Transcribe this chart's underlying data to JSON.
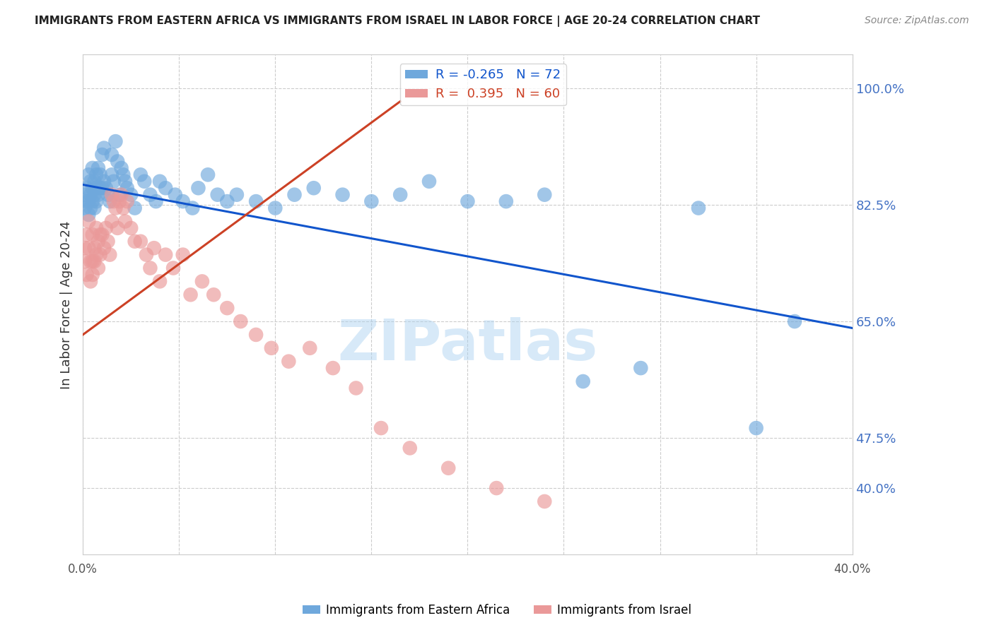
{
  "title": "IMMIGRANTS FROM EASTERN AFRICA VS IMMIGRANTS FROM ISRAEL IN LABOR FORCE | AGE 20-24 CORRELATION CHART",
  "source": "Source: ZipAtlas.com",
  "ylabel": "In Labor Force | Age 20-24",
  "xlim": [
    0.0,
    0.4
  ],
  "ylim": [
    0.3,
    1.05
  ],
  "xticks": [
    0.0,
    0.05,
    0.1,
    0.15,
    0.2,
    0.25,
    0.3,
    0.35,
    0.4
  ],
  "xticklabels": [
    "0.0%",
    "",
    "",
    "",
    "",
    "",
    "",
    "",
    "40.0%"
  ],
  "yticks_right": [
    0.4,
    0.475,
    0.65,
    0.825,
    1.0
  ],
  "yticklabels_right": [
    "40.0%",
    "47.5%",
    "65.0%",
    "82.5%",
    "100.0%"
  ],
  "blue_R": -0.265,
  "blue_N": 72,
  "pink_R": 0.395,
  "pink_N": 60,
  "blue_color": "#6fa8dc",
  "pink_color": "#ea9999",
  "blue_line_color": "#1155cc",
  "pink_line_color": "#cc4125",
  "watermark": "ZIPatlas",
  "watermark_color": "#a8d0f0",
  "legend_label_blue": "Immigrants from Eastern Africa",
  "legend_label_pink": "Immigrants from Israel",
  "blue_scatter_x": [
    0.001,
    0.001,
    0.002,
    0.002,
    0.003,
    0.003,
    0.003,
    0.004,
    0.004,
    0.004,
    0.005,
    0.005,
    0.005,
    0.006,
    0.006,
    0.006,
    0.007,
    0.007,
    0.007,
    0.008,
    0.008,
    0.009,
    0.009,
    0.01,
    0.01,
    0.011,
    0.011,
    0.012,
    0.013,
    0.014,
    0.015,
    0.015,
    0.016,
    0.017,
    0.018,
    0.019,
    0.02,
    0.021,
    0.022,
    0.023,
    0.025,
    0.027,
    0.03,
    0.032,
    0.035,
    0.038,
    0.04,
    0.043,
    0.048,
    0.052,
    0.057,
    0.06,
    0.065,
    0.07,
    0.075,
    0.08,
    0.09,
    0.1,
    0.11,
    0.12,
    0.135,
    0.15,
    0.165,
    0.18,
    0.2,
    0.22,
    0.24,
    0.26,
    0.29,
    0.32,
    0.35,
    0.37
  ],
  "blue_scatter_y": [
    0.84,
    0.82,
    0.85,
    0.83,
    0.87,
    0.83,
    0.81,
    0.86,
    0.84,
    0.82,
    0.88,
    0.85,
    0.83,
    0.86,
    0.84,
    0.82,
    0.87,
    0.85,
    0.83,
    0.88,
    0.84,
    0.87,
    0.85,
    0.9,
    0.85,
    0.91,
    0.86,
    0.85,
    0.84,
    0.83,
    0.9,
    0.87,
    0.86,
    0.92,
    0.89,
    0.84,
    0.88,
    0.87,
    0.86,
    0.85,
    0.84,
    0.82,
    0.87,
    0.86,
    0.84,
    0.83,
    0.86,
    0.85,
    0.84,
    0.83,
    0.82,
    0.85,
    0.87,
    0.84,
    0.83,
    0.84,
    0.83,
    0.82,
    0.84,
    0.85,
    0.84,
    0.83,
    0.84,
    0.86,
    0.83,
    0.83,
    0.84,
    0.56,
    0.58,
    0.82,
    0.49,
    0.65
  ],
  "pink_scatter_x": [
    0.001,
    0.001,
    0.002,
    0.002,
    0.003,
    0.003,
    0.004,
    0.004,
    0.005,
    0.005,
    0.005,
    0.006,
    0.006,
    0.007,
    0.007,
    0.008,
    0.008,
    0.009,
    0.009,
    0.01,
    0.011,
    0.012,
    0.013,
    0.014,
    0.015,
    0.015,
    0.016,
    0.017,
    0.018,
    0.019,
    0.02,
    0.021,
    0.022,
    0.023,
    0.025,
    0.027,
    0.03,
    0.033,
    0.035,
    0.037,
    0.04,
    0.043,
    0.047,
    0.052,
    0.056,
    0.062,
    0.068,
    0.075,
    0.082,
    0.09,
    0.098,
    0.107,
    0.118,
    0.13,
    0.142,
    0.155,
    0.17,
    0.19,
    0.215,
    0.24
  ],
  "pink_scatter_y": [
    0.76,
    0.74,
    0.78,
    0.72,
    0.8,
    0.76,
    0.74,
    0.71,
    0.78,
    0.74,
    0.72,
    0.76,
    0.74,
    0.79,
    0.75,
    0.77,
    0.73,
    0.78,
    0.75,
    0.78,
    0.76,
    0.79,
    0.77,
    0.75,
    0.84,
    0.8,
    0.83,
    0.82,
    0.79,
    0.83,
    0.84,
    0.82,
    0.8,
    0.83,
    0.79,
    0.77,
    0.77,
    0.75,
    0.73,
    0.76,
    0.71,
    0.75,
    0.73,
    0.75,
    0.69,
    0.71,
    0.69,
    0.67,
    0.65,
    0.63,
    0.61,
    0.59,
    0.61,
    0.58,
    0.55,
    0.49,
    0.46,
    0.43,
    0.4,
    0.38
  ],
  "blue_trend_x": [
    0.0,
    0.4
  ],
  "blue_trend_y": [
    0.855,
    0.64
  ],
  "pink_trend_x": [
    0.0,
    0.165
  ],
  "pink_trend_y": [
    0.63,
    0.98
  ],
  "background_color": "#ffffff",
  "grid_color": "#cccccc",
  "axis_color": "#cccccc"
}
